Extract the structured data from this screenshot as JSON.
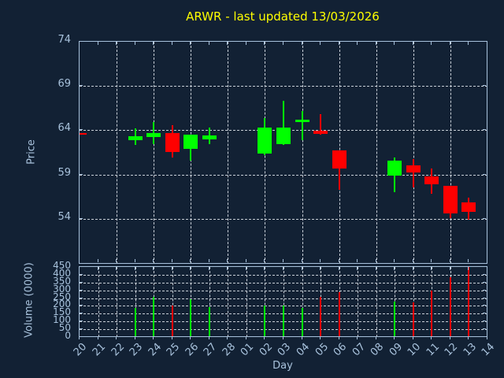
{
  "title": {
    "text": "ARWR - last updated 13/03/2026"
  },
  "colors": {
    "background": "#122134",
    "frame": "#a8c2dc",
    "text": "#a8c2dc",
    "grid": "#c7ced6",
    "title": "#ffff00",
    "up": "#00ff00",
    "down": "#ff0000"
  },
  "x_axis": {
    "label": "Day",
    "categories": [
      "20",
      "21",
      "22",
      "23",
      "24",
      "25",
      "26",
      "27",
      "28",
      "01",
      "02",
      "03",
      "04",
      "05",
      "06",
      "07",
      "08",
      "09",
      "10",
      "11",
      "12",
      "13",
      "14"
    ]
  },
  "chart_data": [
    {
      "type": "candlestick",
      "panel": "price",
      "ylabel": "Price",
      "yticks": [
        74,
        69,
        64,
        59,
        54
      ],
      "ylim": [
        48.9,
        74
      ],
      "grid": "on",
      "candles": [
        {
          "day": "20",
          "open": 63.7,
          "high": 63.7,
          "low": 63.5,
          "close": 63.5
        },
        {
          "day": "23",
          "open": 62.9,
          "high": 64.2,
          "low": 62.3,
          "close": 63.3
        },
        {
          "day": "24",
          "open": 63.2,
          "high": 64.9,
          "low": 62.4,
          "close": 63.7
        },
        {
          "day": "25",
          "open": 63.7,
          "high": 64.6,
          "low": 60.9,
          "close": 61.5
        },
        {
          "day": "26",
          "open": 61.9,
          "high": 63.5,
          "low": 60.6,
          "close": 63.5
        },
        {
          "day": "27",
          "open": 63.0,
          "high": 64.3,
          "low": 62.4,
          "close": 63.4
        },
        {
          "day": "02",
          "open": 61.4,
          "high": 65.4,
          "low": 61.2,
          "close": 64.3
        },
        {
          "day": "03",
          "open": 62.4,
          "high": 67.3,
          "low": 62.3,
          "close": 64.3
        },
        {
          "day": "04",
          "open": 64.9,
          "high": 66.2,
          "low": 62.9,
          "close": 65.2
        },
        {
          "day": "05",
          "open": 63.9,
          "high": 65.8,
          "low": 63.5,
          "close": 63.6
        },
        {
          "day": "06",
          "open": 61.7,
          "high": 61.7,
          "low": 57.3,
          "close": 59.7
        },
        {
          "day": "09",
          "open": 58.9,
          "high": 60.9,
          "low": 57.0,
          "close": 60.6
        },
        {
          "day": "10",
          "open": 60.0,
          "high": 60.7,
          "low": 57.5,
          "close": 59.2
        },
        {
          "day": "11",
          "open": 58.8,
          "high": 59.7,
          "low": 56.8,
          "close": 57.9
        },
        {
          "day": "12",
          "open": 57.7,
          "high": 57.7,
          "low": 54.1,
          "close": 54.6
        },
        {
          "day": "13",
          "open": 55.8,
          "high": 56.4,
          "low": 53.9,
          "close": 54.8
        }
      ]
    },
    {
      "type": "bar",
      "panel": "volume",
      "ylabel": "Volume (0000)",
      "yticks": [
        450,
        400,
        350,
        300,
        250,
        200,
        150,
        100,
        50,
        0
      ],
      "ylim": [
        0,
        450
      ],
      "grid": "on",
      "bars": [
        {
          "day": "23",
          "value": 185,
          "direction": "up"
        },
        {
          "day": "24",
          "value": 260,
          "direction": "up"
        },
        {
          "day": "25",
          "value": 200,
          "direction": "down"
        },
        {
          "day": "26",
          "value": 245,
          "direction": "up"
        },
        {
          "day": "27",
          "value": 190,
          "direction": "up"
        },
        {
          "day": "02",
          "value": 200,
          "direction": "up"
        },
        {
          "day": "03",
          "value": 200,
          "direction": "up"
        },
        {
          "day": "04",
          "value": 185,
          "direction": "up"
        },
        {
          "day": "05",
          "value": 260,
          "direction": "down"
        },
        {
          "day": "06",
          "value": 290,
          "direction": "down"
        },
        {
          "day": "09",
          "value": 230,
          "direction": "up"
        },
        {
          "day": "10",
          "value": 225,
          "direction": "down"
        },
        {
          "day": "11",
          "value": 300,
          "direction": "down"
        },
        {
          "day": "12",
          "value": 385,
          "direction": "down"
        },
        {
          "day": "13",
          "value": 450,
          "direction": "down"
        }
      ]
    }
  ]
}
